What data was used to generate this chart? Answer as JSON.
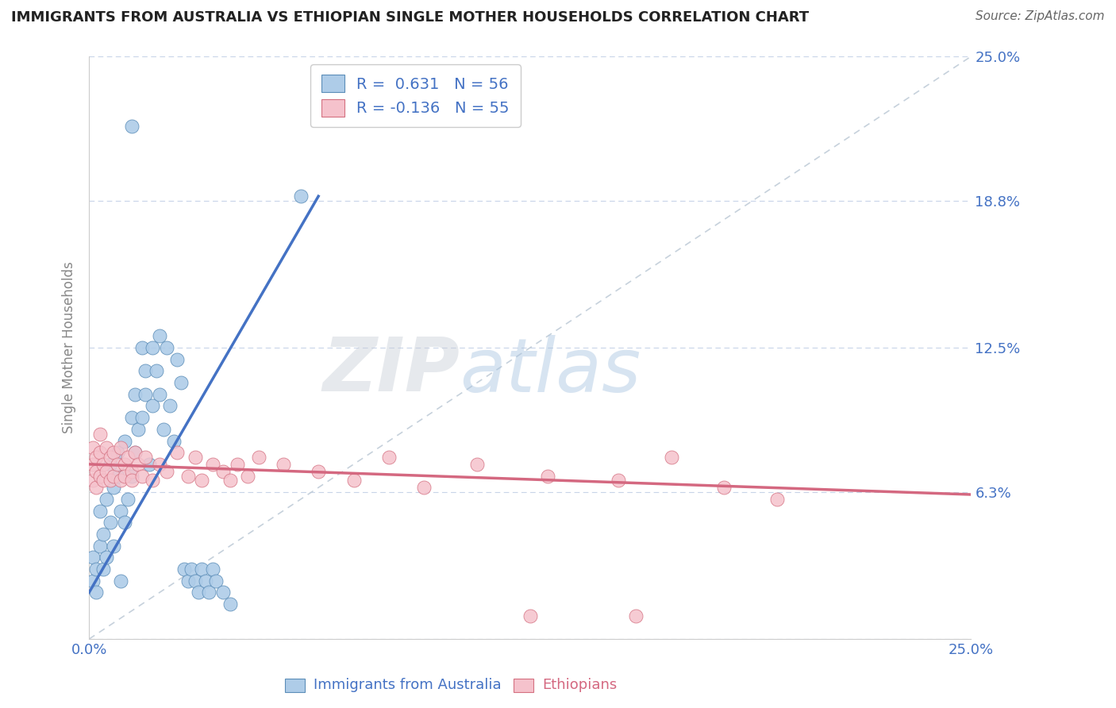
{
  "title": "IMMIGRANTS FROM AUSTRALIA VS ETHIOPIAN SINGLE MOTHER HOUSEHOLDS CORRELATION CHART",
  "source": "Source: ZipAtlas.com",
  "ylabel": "Single Mother Households",
  "xlim": [
    0.0,
    0.25
  ],
  "ylim": [
    0.0,
    0.25
  ],
  "ytick_values": [
    0.0,
    0.063,
    0.125,
    0.188,
    0.25
  ],
  "ytick_labels": [
    "",
    "6.3%",
    "12.5%",
    "18.8%",
    "25.0%"
  ],
  "xtick_values": [
    0.0,
    0.05,
    0.1,
    0.15,
    0.2,
    0.25
  ],
  "xtick_labels": [
    "0.0%",
    "",
    "",
    "",
    "",
    "25.0%"
  ],
  "series1_color": "#aecce8",
  "series1_edge_color": "#5b8db8",
  "series1_line_color": "#4472c4",
  "series2_color": "#f5c2cc",
  "series2_edge_color": "#d47080",
  "series2_line_color": "#d46880",
  "series1_R": "0.631",
  "series1_N": "56",
  "series2_R": "-0.136",
  "series2_N": "55",
  "legend_color": "#4472c4",
  "watermark_color": "#d0dff0",
  "background_color": "#ffffff",
  "grid_color": "#c8d4e8",
  "title_color": "#222222",
  "axis_tick_color": "#4472c4",
  "ylabel_color": "#888888",
  "diag_color": "#c0ccd8",
  "series1_line_endpoints": [
    [
      0.0,
      0.02
    ],
    [
      0.065,
      0.19
    ]
  ],
  "series2_line_endpoints": [
    [
      0.0,
      0.075
    ],
    [
      0.25,
      0.062
    ]
  ],
  "series1_scatter": [
    [
      0.001,
      0.025
    ],
    [
      0.001,
      0.035
    ],
    [
      0.002,
      0.03
    ],
    [
      0.002,
      0.02
    ],
    [
      0.003,
      0.04
    ],
    [
      0.003,
      0.055
    ],
    [
      0.004,
      0.045
    ],
    [
      0.004,
      0.03
    ],
    [
      0.005,
      0.06
    ],
    [
      0.005,
      0.035
    ],
    [
      0.006,
      0.075
    ],
    [
      0.006,
      0.05
    ],
    [
      0.007,
      0.065
    ],
    [
      0.007,
      0.04
    ],
    [
      0.008,
      0.07
    ],
    [
      0.008,
      0.08
    ],
    [
      0.009,
      0.055
    ],
    [
      0.009,
      0.025
    ],
    [
      0.01,
      0.05
    ],
    [
      0.01,
      0.085
    ],
    [
      0.011,
      0.06
    ],
    [
      0.012,
      0.07
    ],
    [
      0.012,
      0.095
    ],
    [
      0.013,
      0.08
    ],
    [
      0.013,
      0.105
    ],
    [
      0.014,
      0.09
    ],
    [
      0.015,
      0.095
    ],
    [
      0.015,
      0.125
    ],
    [
      0.016,
      0.105
    ],
    [
      0.016,
      0.115
    ],
    [
      0.017,
      0.075
    ],
    [
      0.018,
      0.125
    ],
    [
      0.018,
      0.1
    ],
    [
      0.019,
      0.115
    ],
    [
      0.02,
      0.105
    ],
    [
      0.02,
      0.13
    ],
    [
      0.021,
      0.09
    ],
    [
      0.022,
      0.125
    ],
    [
      0.023,
      0.1
    ],
    [
      0.024,
      0.085
    ],
    [
      0.025,
      0.12
    ],
    [
      0.026,
      0.11
    ],
    [
      0.027,
      0.03
    ],
    [
      0.028,
      0.025
    ],
    [
      0.029,
      0.03
    ],
    [
      0.03,
      0.025
    ],
    [
      0.031,
      0.02
    ],
    [
      0.032,
      0.03
    ],
    [
      0.033,
      0.025
    ],
    [
      0.034,
      0.02
    ],
    [
      0.035,
      0.03
    ],
    [
      0.036,
      0.025
    ],
    [
      0.038,
      0.02
    ],
    [
      0.04,
      0.015
    ],
    [
      0.06,
      0.19
    ],
    [
      0.012,
      0.22
    ]
  ],
  "series2_scatter": [
    [
      0.001,
      0.075
    ],
    [
      0.001,
      0.068
    ],
    [
      0.001,
      0.082
    ],
    [
      0.002,
      0.072
    ],
    [
      0.002,
      0.078
    ],
    [
      0.002,
      0.065
    ],
    [
      0.003,
      0.08
    ],
    [
      0.003,
      0.07
    ],
    [
      0.003,
      0.088
    ],
    [
      0.004,
      0.075
    ],
    [
      0.004,
      0.068
    ],
    [
      0.005,
      0.082
    ],
    [
      0.005,
      0.072
    ],
    [
      0.006,
      0.078
    ],
    [
      0.006,
      0.068
    ],
    [
      0.007,
      0.08
    ],
    [
      0.007,
      0.07
    ],
    [
      0.008,
      0.075
    ],
    [
      0.009,
      0.068
    ],
    [
      0.009,
      0.082
    ],
    [
      0.01,
      0.075
    ],
    [
      0.01,
      0.07
    ],
    [
      0.011,
      0.078
    ],
    [
      0.012,
      0.072
    ],
    [
      0.012,
      0.068
    ],
    [
      0.013,
      0.08
    ],
    [
      0.014,
      0.075
    ],
    [
      0.015,
      0.07
    ],
    [
      0.016,
      0.078
    ],
    [
      0.018,
      0.068
    ],
    [
      0.02,
      0.075
    ],
    [
      0.022,
      0.072
    ],
    [
      0.025,
      0.08
    ],
    [
      0.028,
      0.07
    ],
    [
      0.03,
      0.078
    ],
    [
      0.032,
      0.068
    ],
    [
      0.035,
      0.075
    ],
    [
      0.038,
      0.072
    ],
    [
      0.04,
      0.068
    ],
    [
      0.042,
      0.075
    ],
    [
      0.045,
      0.07
    ],
    [
      0.048,
      0.078
    ],
    [
      0.055,
      0.075
    ],
    [
      0.065,
      0.072
    ],
    [
      0.075,
      0.068
    ],
    [
      0.085,
      0.078
    ],
    [
      0.095,
      0.065
    ],
    [
      0.11,
      0.075
    ],
    [
      0.13,
      0.07
    ],
    [
      0.15,
      0.068
    ],
    [
      0.165,
      0.078
    ],
    [
      0.18,
      0.065
    ],
    [
      0.195,
      0.06
    ],
    [
      0.155,
      0.01
    ],
    [
      0.125,
      0.01
    ]
  ]
}
